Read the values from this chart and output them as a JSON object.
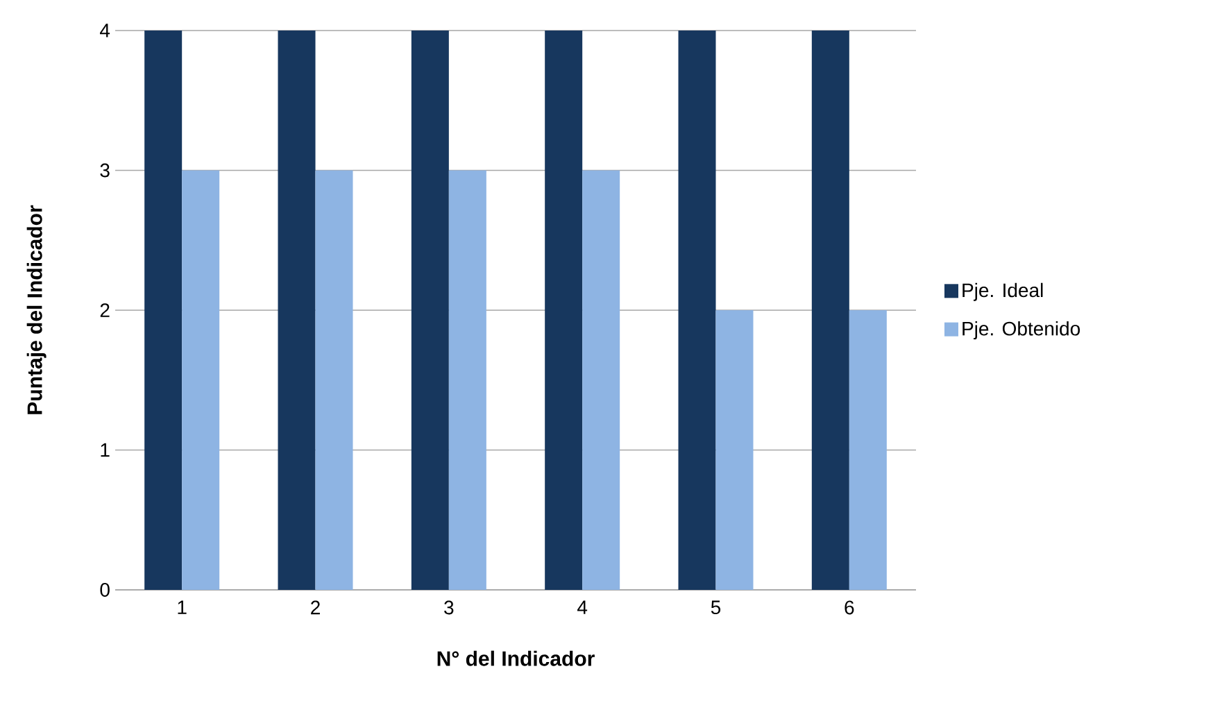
{
  "chart_data": {
    "type": "bar",
    "xlabel": "N° del Indicador",
    "ylabel": "Puntaje del Indicador",
    "categories": [
      "1",
      "2",
      "3",
      "4",
      "5",
      "6"
    ],
    "series": [
      {
        "name": "Pje. Ideal",
        "color": "#17375e",
        "values": [
          4,
          4,
          4,
          4,
          4,
          4
        ]
      },
      {
        "name": "Pje. Obtenido",
        "color": "#8eb4e3",
        "values": [
          3,
          3,
          3,
          3,
          2,
          2
        ]
      }
    ],
    "ylim": [
      0,
      4
    ],
    "yticks": [
      0,
      1,
      2,
      3,
      4
    ],
    "grid": "y",
    "legend": "right"
  }
}
